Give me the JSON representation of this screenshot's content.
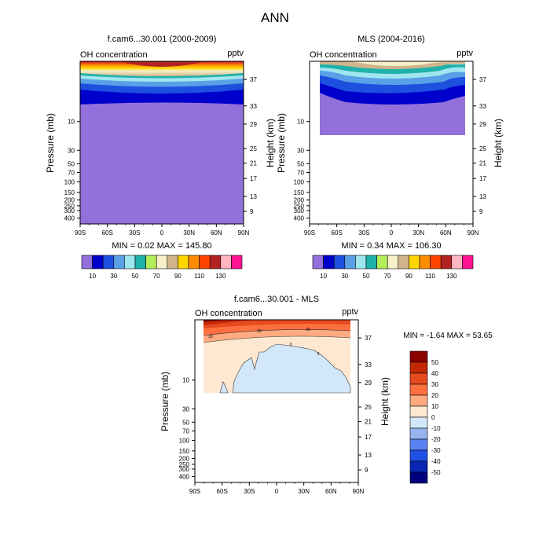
{
  "figure": {
    "title": "ANN"
  },
  "panels": [
    {
      "title": "f.cam6...30.001 (2000-2009)",
      "left_label": "OH concentration",
      "right_label": "pptv",
      "ylabel": "Pressure (mb)",
      "ylabel_right": "Height (km)",
      "minmax": "MIN =   0.02  MAX = 145.80"
    },
    {
      "title": "MLS (2004-2016)",
      "left_label": "OH concentration",
      "right_label": "pptv",
      "ylabel": "Pressure (mb)",
      "ylabel_right": "Height (km)",
      "minmax": "MIN =   0.34  MAX = 106.30"
    },
    {
      "title": "f.cam6...30.001 - MLS",
      "left_label": "OH concentration",
      "right_label": "pptv",
      "ylabel": "Pressure (mb)",
      "ylabel_right": "Height (km)",
      "minmax": "MIN =  -1.64  MAX =  53.65"
    }
  ],
  "chart_data": {
    "type": "heatmap",
    "x_tick_labels": [
      "90S",
      "60S",
      "30S",
      "0",
      "30N",
      "60N",
      "90N"
    ],
    "x_tick_values": [
      -90,
      -60,
      -30,
      0,
      30,
      60,
      90
    ],
    "pressure_ticks": [
      10,
      30,
      50,
      70,
      100,
      150,
      200,
      250,
      300,
      400
    ],
    "pressure_tick_labels": [
      "10",
      "30",
      "50",
      "70",
      "100",
      "150",
      "200",
      "250",
      "300",
      "400"
    ],
    "pressure_range": [
      1,
      500
    ],
    "pressure_log_scale": true,
    "height_ticks": [
      {
        "label": "37",
        "pressure": 2.0
      },
      {
        "label": "33",
        "pressure": 5.5
      },
      {
        "label": "29",
        "pressure": 11
      },
      {
        "label": "25",
        "pressure": 28
      },
      {
        "label": "21",
        "pressure": 49
      },
      {
        "label": "17",
        "pressure": 88
      },
      {
        "label": "13",
        "pressure": 175
      },
      {
        "label": "9",
        "pressure": 310
      }
    ],
    "abs_colorbar": {
      "labels": [
        "10",
        "30",
        "50",
        "70",
        "90",
        "110",
        "130"
      ],
      "colors": [
        "#9370db",
        "#0000cd",
        "#1e50e0",
        "#5aa0e6",
        "#a0e6f0",
        "#20b2aa",
        "#b4ee5a",
        "#f5f0c8",
        "#d2b48c",
        "#ffd700",
        "#ff8c00",
        "#ff4500",
        "#b22222",
        "#ffb6c1",
        "#ff1493"
      ]
    },
    "diff_colorbar": {
      "labels": [
        "50",
        "40",
        "30",
        "20",
        "10",
        "0",
        "-10",
        "-20",
        "-30",
        "-40",
        "-50"
      ],
      "colors": [
        "#8b0000",
        "#c42800",
        "#e84a20",
        "#ff7040",
        "#ffaa80",
        "#ffe8d2",
        "#d2e8fa",
        "#96b4f0",
        "#5a82f0",
        "#2050e6",
        "#0828b4",
        "#00007f"
      ]
    },
    "contour_labels": [
      "20",
      "20",
      "20",
      "0",
      "0"
    ]
  }
}
